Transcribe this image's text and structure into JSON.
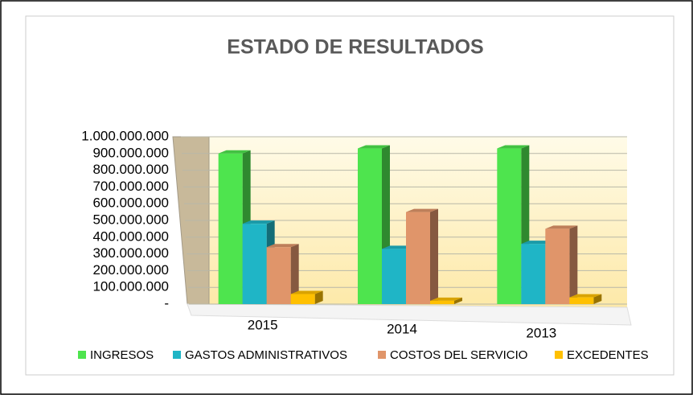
{
  "chart_data": {
    "type": "bar3d",
    "title": "ESTADO DE RESULTADOS",
    "categories": [
      "2015",
      "2014",
      "2013"
    ],
    "series": [
      {
        "name": "INGRESOS",
        "color": "#4ee44e",
        "values": [
          900000000,
          930000000,
          930000000
        ]
      },
      {
        "name": "GASTOS ADMINISTRATIVOS",
        "color": "#1fb5c6",
        "values": [
          480000000,
          330000000,
          360000000
        ]
      },
      {
        "name": "COSTOS DEL SERVICIO",
        "color": "#e0956a",
        "values": [
          340000000,
          550000000,
          450000000
        ]
      },
      {
        "name": "EXCEDENTES",
        "color": "#ffc000",
        "values": [
          60000000,
          20000000,
          40000000
        ]
      }
    ],
    "ylim": [
      0,
      1000000000
    ],
    "yticks": [
      {
        "value": 0,
        "label": "-"
      },
      {
        "value": 100000000,
        "label": "100.000.000"
      },
      {
        "value": 200000000,
        "label": "200.000.000"
      },
      {
        "value": 300000000,
        "label": "300.000.000"
      },
      {
        "value": 400000000,
        "label": "400.000.000"
      },
      {
        "value": 500000000,
        "label": "500.000.000"
      },
      {
        "value": 600000000,
        "label": "600.000.000"
      },
      {
        "value": 700000000,
        "label": "700.000.000"
      },
      {
        "value": 800000000,
        "label": "800.000.000"
      },
      {
        "value": 900000000,
        "label": "900.000.000"
      },
      {
        "value": 1000000000,
        "label": "1.000.000.000"
      }
    ],
    "grid": true,
    "legend": "bottom"
  }
}
